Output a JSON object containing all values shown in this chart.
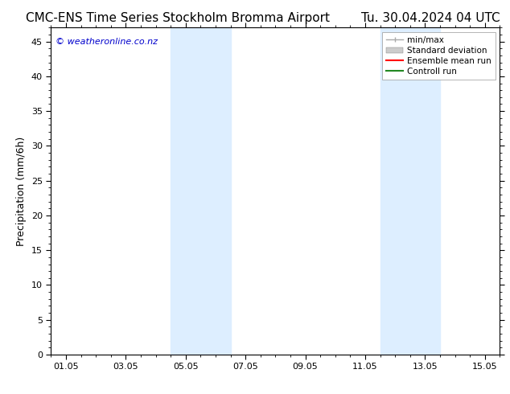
{
  "title_left": "CMC-ENS Time Series Stockholm Bromma Airport",
  "title_right": "Tu. 30.04.2024 04 UTC",
  "ylabel": "Precipitation (mm/6h)",
  "watermark": "© weatheronline.co.nz",
  "x_ticks_labels": [
    "01.05",
    "03.05",
    "05.05",
    "07.05",
    "09.05",
    "11.05",
    "13.05",
    "15.05"
  ],
  "x_ticks_positions": [
    0,
    2,
    4,
    6,
    8,
    10,
    12,
    14
  ],
  "ylim": [
    0,
    47
  ],
  "yticks": [
    0,
    5,
    10,
    15,
    20,
    25,
    30,
    35,
    40,
    45
  ],
  "shaded_regions": [
    {
      "x_start": 3.5,
      "x_end": 5.5
    },
    {
      "x_start": 10.5,
      "x_end": 12.5
    }
  ],
  "shaded_color": "#ddeeff",
  "background_color": "#ffffff",
  "legend_items": [
    {
      "label": "min/max",
      "color": "#aaaaaa"
    },
    {
      "label": "Standard deviation",
      "color": "#cccccc"
    },
    {
      "label": "Ensemble mean run",
      "color": "#ff0000"
    },
    {
      "label": "Controll run",
      "color": "#228822"
    }
  ],
  "watermark_color": "#0000cc",
  "title_fontsize": 11,
  "axis_fontsize": 9,
  "tick_fontsize": 8
}
